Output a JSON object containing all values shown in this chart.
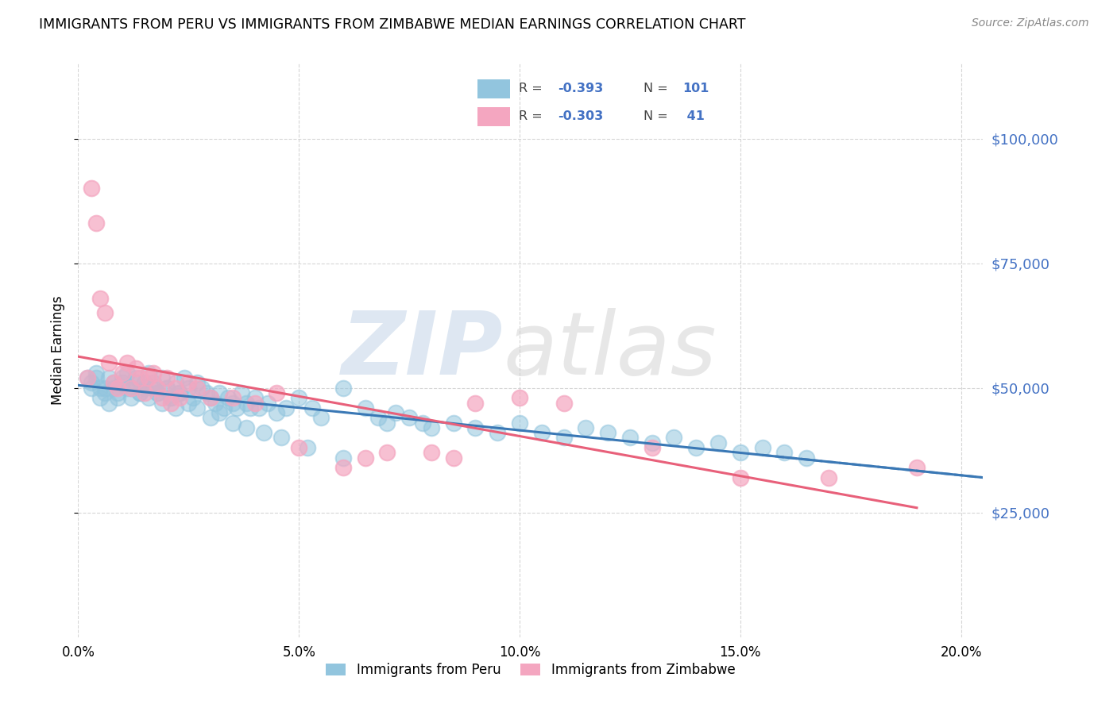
{
  "title": "IMMIGRANTS FROM PERU VS IMMIGRANTS FROM ZIMBABWE MEDIAN EARNINGS CORRELATION CHART",
  "source": "Source: ZipAtlas.com",
  "ylabel": "Median Earnings",
  "xlim": [
    0.0,
    0.205
  ],
  "ylim": [
    0,
    115000
  ],
  "xtick_labels": [
    "0.0%",
    "5.0%",
    "10.0%",
    "15.0%",
    "20.0%"
  ],
  "xtick_positions": [
    0.0,
    0.05,
    0.1,
    0.15,
    0.2
  ],
  "ytick_labels": [
    "$25,000",
    "$50,000",
    "$75,000",
    "$100,000"
  ],
  "ytick_positions": [
    25000,
    50000,
    75000,
    100000
  ],
  "peru_color": "#92c5de",
  "zimbabwe_color": "#f4a6c0",
  "peru_line_color": "#3a78b5",
  "zimbabwe_line_color": "#e8607a",
  "legend_peru_label": "Immigrants from Peru",
  "legend_zimbabwe_label": "Immigrants from Zimbabwe",
  "watermark_zip": "ZIP",
  "watermark_atlas": "atlas",
  "peru_x": [
    0.002,
    0.003,
    0.004,
    0.005,
    0.006,
    0.007,
    0.008,
    0.009,
    0.01,
    0.011,
    0.012,
    0.013,
    0.014,
    0.015,
    0.016,
    0.017,
    0.018,
    0.019,
    0.02,
    0.021,
    0.022,
    0.023,
    0.024,
    0.025,
    0.026,
    0.027,
    0.028,
    0.029,
    0.03,
    0.031,
    0.032,
    0.033,
    0.034,
    0.035,
    0.036,
    0.037,
    0.038,
    0.039,
    0.04,
    0.041,
    0.043,
    0.045,
    0.047,
    0.05,
    0.053,
    0.055,
    0.06,
    0.065,
    0.068,
    0.07,
    0.072,
    0.075,
    0.078,
    0.08,
    0.085,
    0.09,
    0.095,
    0.1,
    0.105,
    0.11,
    0.115,
    0.12,
    0.125,
    0.13,
    0.135,
    0.14,
    0.145,
    0.15,
    0.155,
    0.16,
    0.165,
    0.003,
    0.004,
    0.005,
    0.006,
    0.007,
    0.008,
    0.009,
    0.01,
    0.011,
    0.012,
    0.013,
    0.014,
    0.015,
    0.016,
    0.017,
    0.018,
    0.019,
    0.02,
    0.021,
    0.022,
    0.023,
    0.025,
    0.027,
    0.03,
    0.032,
    0.035,
    0.038,
    0.042,
    0.046,
    0.052,
    0.06
  ],
  "peru_y": [
    52000,
    51000,
    53000,
    50000,
    49000,
    52000,
    50000,
    48000,
    51000,
    53000,
    50000,
    52000,
    49000,
    51000,
    53000,
    50000,
    49000,
    52000,
    50000,
    48000,
    51000,
    49000,
    52000,
    50000,
    48000,
    51000,
    50000,
    49000,
    48000,
    47000,
    49000,
    46000,
    48000,
    47000,
    46000,
    49000,
    47000,
    46000,
    48000,
    46000,
    47000,
    45000,
    46000,
    48000,
    46000,
    44000,
    50000,
    46000,
    44000,
    43000,
    45000,
    44000,
    43000,
    42000,
    43000,
    42000,
    41000,
    43000,
    41000,
    40000,
    42000,
    41000,
    40000,
    39000,
    40000,
    38000,
    39000,
    37000,
    38000,
    37000,
    36000,
    50000,
    52000,
    48000,
    50000,
    47000,
    51000,
    49000,
    52000,
    50000,
    48000,
    51000,
    49000,
    50000,
    48000,
    51000,
    49000,
    47000,
    50000,
    48000,
    46000,
    49000,
    47000,
    46000,
    44000,
    45000,
    43000,
    42000,
    41000,
    40000,
    38000,
    36000
  ],
  "zimbabwe_x": [
    0.002,
    0.003,
    0.004,
    0.005,
    0.006,
    0.007,
    0.008,
    0.009,
    0.01,
    0.011,
    0.012,
    0.013,
    0.014,
    0.015,
    0.016,
    0.017,
    0.018,
    0.019,
    0.02,
    0.021,
    0.022,
    0.023,
    0.025,
    0.027,
    0.03,
    0.035,
    0.04,
    0.045,
    0.05,
    0.06,
    0.065,
    0.07,
    0.08,
    0.085,
    0.09,
    0.1,
    0.11,
    0.13,
    0.15,
    0.17,
    0.19
  ],
  "zimbabwe_y": [
    52000,
    90000,
    83000,
    68000,
    65000,
    55000,
    51000,
    50000,
    53000,
    55000,
    50000,
    54000,
    52000,
    49000,
    52000,
    53000,
    50000,
    48000,
    52000,
    47000,
    50000,
    48000,
    51000,
    50000,
    48000,
    48000,
    47000,
    49000,
    38000,
    34000,
    36000,
    37000,
    37000,
    36000,
    47000,
    48000,
    47000,
    38000,
    32000,
    32000,
    34000
  ]
}
